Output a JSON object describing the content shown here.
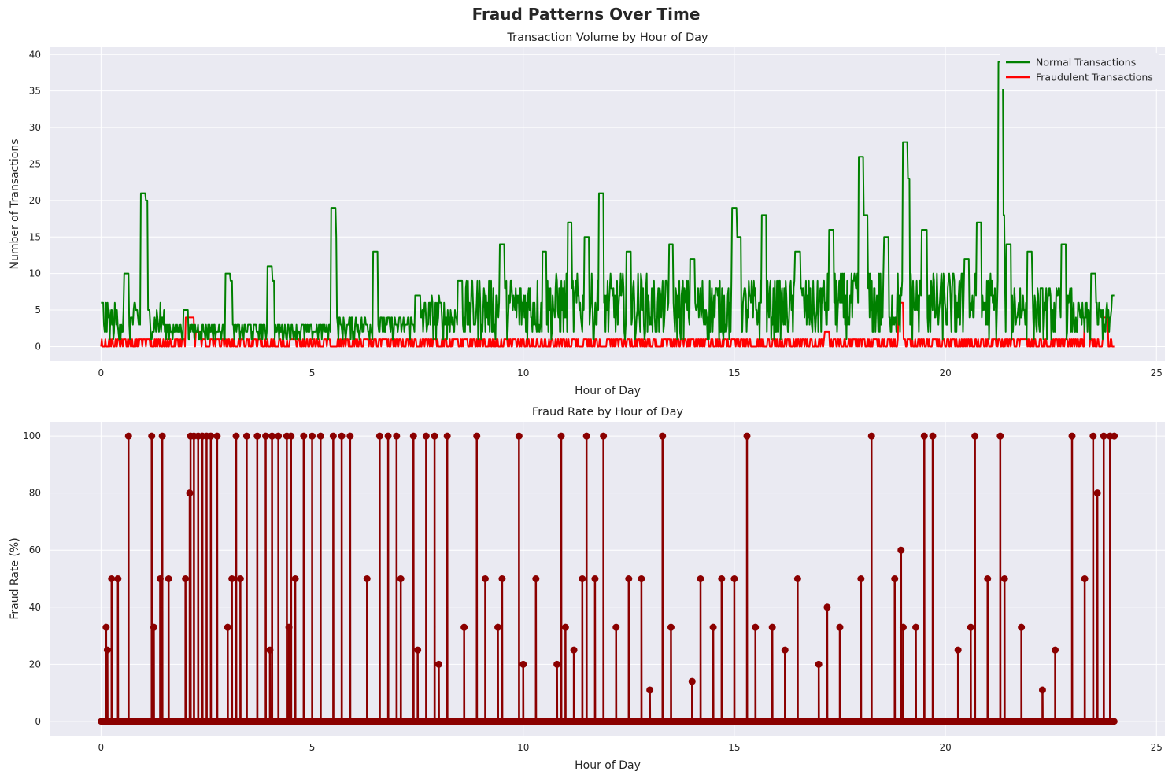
{
  "figure": {
    "suptitle": "Fraud Patterns Over Time"
  },
  "colors": {
    "background": "#EAEAF2",
    "grid": "#FFFFFF",
    "normal": "#008000",
    "fraud": "#FF0000",
    "fraud_rate": "#8B0000",
    "text": "#262626"
  },
  "chart_data": [
    {
      "type": "line",
      "title": "Transaction Volume by Hour of Day",
      "xlabel": "Hour of Day",
      "ylabel": "Number of Transactions",
      "xlim": [
        -1.2,
        25.2
      ],
      "ylim": [
        -2,
        41
      ],
      "xticks": [
        0,
        5,
        10,
        15,
        20,
        25
      ],
      "yticks": [
        0,
        5,
        10,
        15,
        20,
        25,
        30,
        35,
        40
      ],
      "grid": true,
      "legend": "top-right",
      "series": [
        {
          "name": "Normal Transactions",
          "color": "#008000",
          "x": [
            0,
            0.6,
            1.0,
            1.04,
            2.0,
            3.0,
            3.05,
            4.0,
            4.05,
            5.5,
            5.52,
            6.5,
            7.5,
            8.5,
            9.5,
            10.5,
            11.1,
            11.5,
            11.85,
            12.5,
            13.5,
            14.0,
            15.0,
            15.1,
            15.7,
            16.5,
            17.3,
            18.0,
            18.1,
            18.6,
            19.05,
            19.1,
            19.5,
            20.5,
            20.8,
            21.3,
            21.35,
            21.5,
            22.0,
            22.8,
            23.5,
            24.0
          ],
          "y": [
            6,
            10,
            21,
            20,
            5,
            10,
            9,
            11,
            9,
            19,
            15,
            13,
            7,
            9,
            14,
            13,
            17,
            15,
            21,
            13,
            14,
            12,
            19,
            15,
            18,
            13,
            16,
            26,
            18,
            15,
            28,
            23,
            16,
            12,
            17,
            39,
            18,
            14,
            13,
            14,
            10,
            7
          ]
        },
        {
          "name": "Fraudulent Transactions",
          "color": "#FF0000",
          "x": [
            0,
            2.05,
            2.15,
            2.3,
            5.0,
            10.0,
            15.0,
            17.2,
            18.95,
            20.0,
            21.0,
            23.35,
            23.8,
            24.0
          ],
          "y": [
            1,
            4,
            4,
            2,
            1,
            1,
            1,
            2,
            6,
            1,
            1,
            4,
            4,
            1
          ]
        }
      ]
    },
    {
      "type": "line",
      "title": "Fraud Rate by Hour of Day",
      "xlabel": "Hour of Day",
      "ylabel": "Fraud Rate (%)",
      "xlim": [
        -1.2,
        25.2
      ],
      "ylim": [
        -5,
        105
      ],
      "xticks": [
        0,
        5,
        10,
        15,
        20,
        25
      ],
      "yticks": [
        0,
        20,
        40,
        60,
        80,
        100
      ],
      "grid": true,
      "series": [
        {
          "name": "",
          "color": "#8B0000",
          "marker": "circle",
          "x": [
            0.12,
            0.15,
            0.25,
            0.4,
            0.65,
            1.2,
            1.25,
            1.4,
            1.45,
            1.6,
            2.0,
            2.1,
            2.12,
            2.2,
            2.3,
            2.4,
            2.5,
            2.6,
            2.75,
            3.0,
            3.1,
            3.2,
            3.3,
            3.45,
            3.7,
            3.9,
            4.0,
            4.05,
            4.2,
            4.4,
            4.45,
            4.5,
            4.6,
            4.8,
            5.0,
            5.2,
            5.5,
            5.7,
            5.9,
            6.3,
            6.6,
            6.8,
            7.0,
            7.1,
            7.4,
            7.5,
            7.7,
            7.9,
            8.0,
            8.2,
            8.6,
            8.9,
            9.1,
            9.4,
            9.5,
            9.9,
            10.0,
            10.3,
            10.8,
            10.9,
            11.0,
            11.2,
            11.4,
            11.5,
            11.7,
            11.9,
            12.2,
            12.5,
            12.8,
            13.0,
            13.3,
            13.5,
            14.0,
            14.2,
            14.5,
            14.7,
            15.0,
            15.3,
            15.5,
            15.9,
            16.2,
            16.5,
            17.0,
            17.2,
            17.5,
            18.0,
            18.25,
            18.8,
            18.95,
            19.0,
            19.3,
            19.5,
            19.7,
            20.3,
            20.6,
            20.7,
            21.0,
            21.3,
            21.4,
            21.8,
            22.3,
            22.6,
            23.0,
            23.3,
            23.5,
            23.6,
            23.75,
            23.9,
            24.0
          ],
          "y": [
            33,
            25,
            50,
            50,
            100,
            100,
            33,
            50,
            100,
            50,
            50,
            80,
            100,
            100,
            100,
            100,
            100,
            100,
            100,
            33,
            50,
            100,
            50,
            100,
            100,
            100,
            25,
            100,
            100,
            100,
            33,
            100,
            50,
            100,
            100,
            100,
            100,
            100,
            100,
            50,
            100,
            100,
            100,
            50,
            100,
            25,
            100,
            100,
            20,
            100,
            33,
            100,
            50,
            33,
            50,
            100,
            20,
            50,
            20,
            100,
            33,
            25,
            50,
            100,
            50,
            100,
            33,
            50,
            50,
            11,
            100,
            33,
            14,
            50,
            33,
            50,
            50,
            100,
            33,
            33,
            25,
            50,
            20,
            40,
            33,
            50,
            100,
            50,
            60,
            33,
            33,
            100,
            100,
            25,
            33,
            100,
            50,
            100,
            50,
            33,
            11,
            25,
            100,
            50,
            100,
            80,
            100,
            100,
            100
          ]
        }
      ]
    }
  ]
}
